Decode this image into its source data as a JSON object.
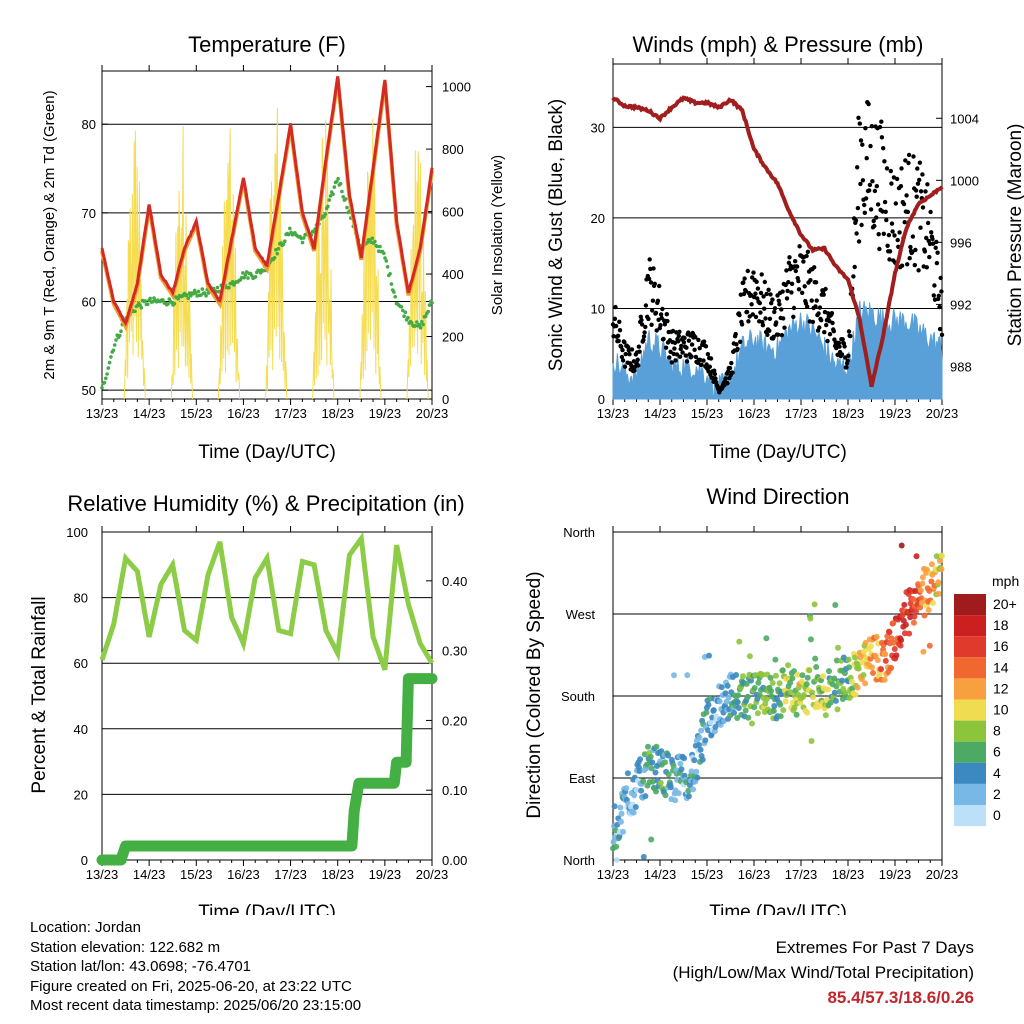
{
  "colors": {
    "temp2m": "#d42a26",
    "temp9m": "#f0a030",
    "dewpoint": "#44aa44",
    "solar": "#f5dc50",
    "pressure": "#a01e1e",
    "gust": "#000000",
    "wind": "#5aa0d8",
    "rh": "#8ccc46",
    "precip": "#44b044",
    "extremes": "#c0272d"
  },
  "time_ticks": [
    "13/23",
    "14/23",
    "15/23",
    "16/23",
    "17/23",
    "18/23",
    "19/23",
    "20/23"
  ],
  "time_label": "Time (Day/UTC)",
  "panels": {
    "temperature": {
      "title": "Temperature (F)",
      "ylabel_left": "2m & 9m T (Red, Orange) & 2m Td (Green)",
      "ylabel_right": "Solar Insolation (Yellow)",
      "left_ticks": [
        "50",
        "60",
        "70",
        "80"
      ],
      "right_ticks": [
        "0",
        "200",
        "400",
        "600",
        "800",
        "1000"
      ]
    },
    "winds": {
      "title": "Winds (mph) & Pressure (mb)",
      "ylabel_left": "Sonic Wind & Gust (Blue, Black)",
      "ylabel_right": "Station Pressure (Maroon)",
      "left_ticks": [
        "0",
        "10",
        "20",
        "30"
      ],
      "right_ticks": [
        "988",
        "992",
        "996",
        "1000",
        "1004"
      ]
    },
    "humidity": {
      "title": "Relative Humidity (%) & Precipitation (in)",
      "ylabel_left": "Percent & Total Rainfall",
      "left_ticks": [
        "0",
        "20",
        "40",
        "60",
        "80",
        "100"
      ],
      "right_ticks": [
        "0.00",
        "0.10",
        "0.20",
        "0.30",
        "0.40"
      ]
    },
    "direction": {
      "title": "Wind Direction",
      "ylabel_left": "Direction (Colored By Speed)",
      "left_ticks": [
        "North",
        "East",
        "South",
        "West",
        "North"
      ],
      "legend_title": "mph",
      "legend_labels": [
        "20+",
        "18",
        "16",
        "14",
        "12",
        "10",
        "8",
        "6",
        "4",
        "2",
        "0"
      ],
      "legend_colors": [
        "#a01c1c",
        "#cc2020",
        "#e03a2c",
        "#f06830",
        "#f8a040",
        "#f0dc50",
        "#8cc43c",
        "#4caa64",
        "#3c88c0",
        "#78b8e6",
        "#bce0f8"
      ]
    }
  },
  "info": {
    "location": "Location: Jordan",
    "elevation": "Station elevation: 122.682 m",
    "latlon": "Station lat/lon: 43.0698; -76.4701",
    "created": "Figure created on Fri, 2025-06-20, at 23:22 UTC",
    "timestamp": "Most recent data timestamp: 2025/06/20 23:15:00"
  },
  "extremes": {
    "heading": "Extremes For Past 7 Days",
    "subheading": "(High/Low/Max Wind/Total Precipitation)",
    "values": "85.4/57.3/18.6/0.26"
  },
  "chart_data": [
    {
      "type": "line",
      "title": "Temperature (F)",
      "xlabel": "Time (Day/UTC)",
      "ylabel": "2m & 9m T (Red, Orange) & 2m Td (Green)",
      "y2label": "Solar Insolation (Yellow)",
      "x": [
        0,
        0.25,
        0.5,
        0.75,
        1,
        1.25,
        1.5,
        1.75,
        2,
        2.25,
        2.5,
        2.75,
        3,
        3.25,
        3.5,
        3.75,
        4,
        4.25,
        4.5,
        4.75,
        5,
        5.25,
        5.5,
        5.75,
        6,
        6.25,
        6.5,
        6.75,
        7
      ],
      "x_units": "days after 13/23",
      "ylim": [
        49,
        86
      ],
      "y2lim": [
        0,
        1050
      ],
      "series": [
        {
          "name": "2m T",
          "values": [
            66,
            60,
            57.5,
            62,
            71,
            63,
            61,
            66,
            69,
            62,
            60,
            67,
            74,
            66,
            64,
            72,
            80,
            70,
            66,
            76,
            85.4,
            72,
            65,
            75,
            85,
            69,
            61,
            66,
            75
          ]
        },
        {
          "name": "2m Td",
          "values": [
            50,
            55,
            58,
            59.5,
            60,
            60,
            60,
            60.5,
            61,
            61,
            61.5,
            62,
            63,
            63,
            64,
            66,
            68,
            67,
            68,
            70,
            74,
            70,
            66,
            67,
            65,
            60,
            58,
            57,
            60
          ]
        },
        {
          "name": "Solar",
          "values": [
            0,
            0,
            0,
            960,
            0,
            0,
            0,
            920,
            0,
            0,
            0,
            880,
            0,
            0,
            0,
            1000,
            0,
            0,
            0,
            1000,
            0,
            0,
            0,
            1000,
            0,
            0,
            0,
            900,
            0
          ]
        }
      ]
    },
    {
      "type": "scatter",
      "title": "Winds (mph) & Pressure (mb)",
      "xlabel": "Time (Day/UTC)",
      "ylabel": "Sonic Wind & Gust (Blue, Black)",
      "y2label": "Station Pressure (Maroon)",
      "x": [
        0,
        0.25,
        0.5,
        0.75,
        1,
        1.25,
        1.5,
        1.75,
        2,
        2.25,
        2.5,
        2.75,
        3,
        3.25,
        3.5,
        3.75,
        4,
        4.25,
        4.5,
        4.75,
        5,
        5.25,
        5.5,
        5.75,
        6,
        6.25,
        6.5,
        6.75,
        7
      ],
      "ylim": [
        0,
        37
      ],
      "y2lim": [
        985.9,
        1007.5
      ],
      "series": [
        {
          "name": "Gust",
          "values": [
            9,
            5,
            4,
            13,
            10,
            6,
            6,
            6,
            5,
            1,
            3,
            10,
            13,
            10,
            9,
            13,
            14,
            12,
            10,
            6,
            5,
            27,
            26,
            24,
            20,
            22,
            21,
            18,
            10
          ]
        },
        {
          "name": "Wind",
          "values": [
            4,
            2,
            2,
            6,
            5,
            3,
            3,
            3,
            2,
            0.5,
            1.5,
            5,
            6,
            5,
            5,
            7,
            8,
            7,
            5,
            3,
            3,
            9,
            9,
            8,
            8,
            8,
            7,
            6,
            5
          ]
        },
        {
          "name": "Pressure",
          "values": [
            1005.3,
            1004.8,
            1004.7,
            1004.5,
            1004.0,
            1004.7,
            1005.3,
            1005.0,
            1005.0,
            1004.7,
            1005.2,
            1004.5,
            1002.0,
            1000.8,
            999.8,
            998.0,
            996.5,
            995.5,
            995.6,
            994.4,
            993.6,
            991.0,
            986.7,
            990.0,
            994.0,
            997.0,
            998.5,
            999.0,
            999.6
          ]
        }
      ]
    },
    {
      "type": "line",
      "title": "Relative Humidity (%) & Precipitation (in)",
      "xlabel": "Time (Day/UTC)",
      "ylabel": "Percent & Total Rainfall",
      "ylim": [
        0,
        100
      ],
      "y2lim": [
        0,
        0.47
      ],
      "x": [
        0,
        0.25,
        0.5,
        0.75,
        1,
        1.25,
        1.5,
        1.75,
        2,
        2.25,
        2.5,
        2.75,
        3,
        3.25,
        3.5,
        3.75,
        4,
        4.25,
        4.5,
        4.75,
        5,
        5.25,
        5.5,
        5.75,
        6,
        6.25,
        6.5,
        6.75,
        7
      ],
      "series": [
        {
          "name": "Relative Humidity",
          "values": [
            61,
            72,
            92,
            88,
            68,
            84,
            90,
            70,
            67,
            87,
            97,
            74,
            66,
            86,
            92,
            70,
            69,
            91,
            90,
            70,
            63,
            93,
            98,
            68,
            58,
            96,
            78,
            66,
            60
          ]
        },
        {
          "name": "Total Precipitation",
          "x": [
            0,
            0.4,
            0.5,
            5.3,
            5.35,
            5.45,
            6.2,
            6.25,
            6.45,
            6.5,
            7
          ],
          "values": [
            0,
            0,
            0.02,
            0.02,
            0.07,
            0.11,
            0.11,
            0.14,
            0.14,
            0.26,
            0.26
          ]
        }
      ]
    },
    {
      "type": "scatter",
      "title": "Wind Direction",
      "xlabel": "Time (Day/UTC)",
      "ylabel": "Direction (Colored By Speed)",
      "y_ticks": [
        "North",
        "East",
        "South",
        "West",
        "North"
      ],
      "ylim": [
        0,
        360
      ],
      "color_scale_mph": [
        0,
        2,
        4,
        6,
        8,
        10,
        12,
        14,
        16,
        18,
        20
      ],
      "series": [
        {
          "name": "Direction",
          "x": [
            0,
            0.25,
            0.5,
            0.75,
            1,
            1.25,
            1.5,
            1.75,
            2,
            2.25,
            2.5,
            2.75,
            3,
            3.25,
            3.5,
            3.75,
            4,
            4.25,
            4.5,
            4.75,
            5,
            5.25,
            5.5,
            5.75,
            6,
            6.25,
            6.5,
            6.75,
            7
          ],
          "values": [
            30,
            60,
            80,
            100,
            100,
            90,
            90,
            100,
            150,
            170,
            180,
            180,
            180,
            180,
            180,
            190,
            180,
            190,
            180,
            200,
            200,
            210,
            220,
            220,
            240,
            270,
            280,
            300,
            320
          ]
        },
        {
          "name": "Speed",
          "values": [
            3,
            3,
            2,
            5,
            5,
            4,
            3,
            3,
            3,
            2,
            3,
            6,
            7,
            7,
            6,
            8,
            9,
            8,
            8,
            6,
            6,
            10,
            12,
            13,
            16,
            17,
            15,
            12,
            10
          ]
        }
      ]
    }
  ]
}
